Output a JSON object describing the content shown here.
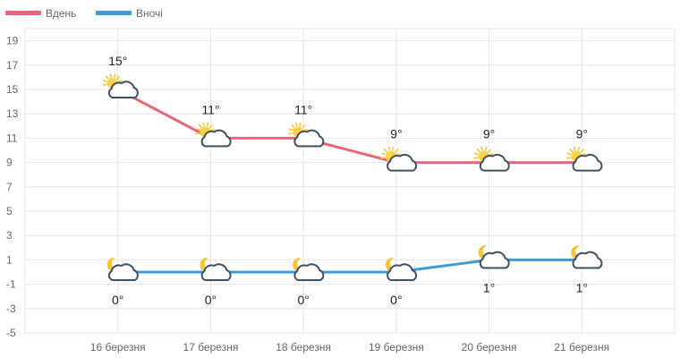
{
  "chart_data": {
    "type": "line",
    "categories": [
      "16 березня",
      "17 березня",
      "18 березня",
      "19 березня",
      "20 березня",
      "21 березня"
    ],
    "series": [
      {
        "name": "Вдень",
        "values": [
          15,
          11,
          11,
          9,
          9,
          9
        ],
        "labels": [
          "15°",
          "11°",
          "11°",
          "9°",
          "9°",
          "9°"
        ],
        "color": "#e8657f",
        "icon": "sun-cloud-icon"
      },
      {
        "name": "Вночі",
        "values": [
          0,
          0,
          0,
          0,
          1,
          1
        ],
        "labels": [
          "0°",
          "0°",
          "0°",
          "0°",
          "1°",
          "1°"
        ],
        "color": "#3e9bd6",
        "icon": "moon-cloud-icon"
      }
    ],
    "yticks": [
      19,
      17,
      15,
      13,
      11,
      9,
      7,
      5,
      3,
      1,
      -1,
      -3,
      -5
    ],
    "ylim": [
      -5,
      20
    ],
    "grid": true,
    "legend": "top-left"
  }
}
